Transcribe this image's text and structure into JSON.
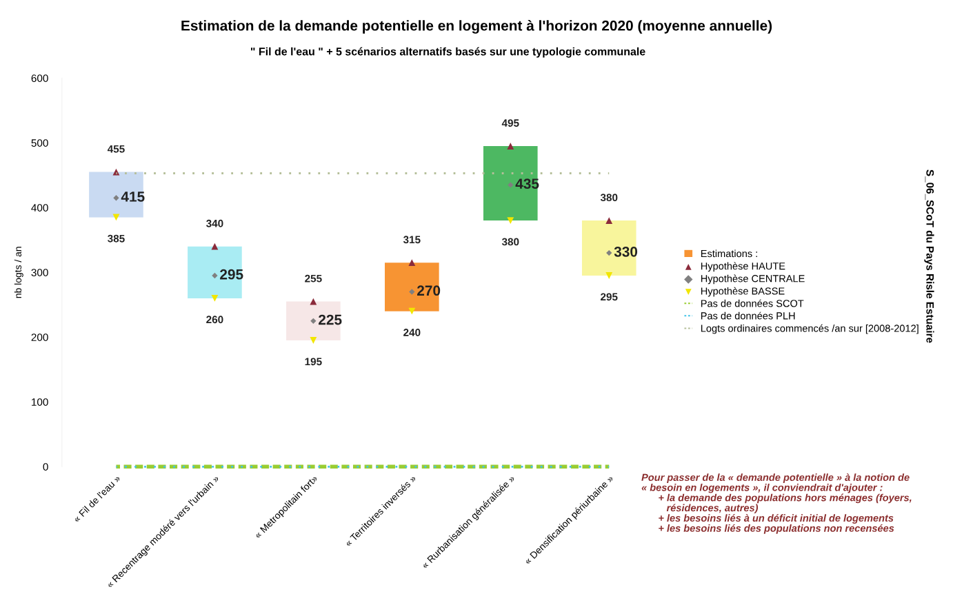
{
  "chart_data": {
    "type": "bar",
    "title": "Estimation de la demande potentielle en logement à l'horizon 2020 (moyenne annuelle)",
    "subtitle": "\" Fil de l'eau \" + 5 scénarios alternatifs basés sur une typologie communale",
    "ylabel": "nb logts / an",
    "categories": [
      "« Fil de l'eau »",
      "« Recentrage modéré vers l'urbain »",
      "« Metropolitain fort»",
      "« Territoires inversés »",
      "« Rurbanisation généralisée »",
      "« Densification périurbaine »"
    ],
    "ylim": [
      0,
      600
    ],
    "yticks": [
      0,
      100,
      200,
      300,
      400,
      500,
      600
    ],
    "grid": false,
    "legend": "right",
    "series": [
      {
        "name": "Estimations :",
        "color": "#f79433",
        "colors": [
          "#c9daf2",
          "#a9ecf3",
          "#f6e7e7",
          "#f79433",
          "#4db862",
          "#f8f59c"
        ],
        "base": [
          385,
          260,
          195,
          240,
          380,
          295
        ],
        "values": [
          70,
          80,
          60,
          75,
          115,
          85
        ]
      },
      {
        "name": "Hypothèse HAUTE",
        "type": "scatter",
        "marker": "triangle",
        "color": "#8b2b3b",
        "values": [
          455,
          340,
          255,
          315,
          495,
          380
        ],
        "value_labels": [
          "455",
          "340",
          "255",
          "315",
          "495",
          "380"
        ]
      },
      {
        "name": "Hypothèse CENTRALE",
        "type": "scatter",
        "marker": "diamond",
        "color": "#808080",
        "values": [
          415,
          295,
          225,
          270,
          435,
          330
        ],
        "value_labels": [
          "415",
          "295",
          "225",
          "270",
          "435",
          "330"
        ]
      },
      {
        "name": "Hypothèse BASSE",
        "type": "scatter",
        "marker": "triangle_down",
        "color": "#f2e600",
        "values": [
          385,
          260,
          195,
          240,
          380,
          295
        ],
        "value_labels": [
          "385",
          "260",
          "195",
          "240",
          "380",
          "295"
        ]
      },
      {
        "name": "Pas de données SCOT",
        "type": "line",
        "line_style": "dashed",
        "color": "#9acd32",
        "values": [
          0,
          0,
          0,
          0,
          0,
          0
        ]
      },
      {
        "name": "Pas de données PLH",
        "type": "line",
        "line_style": "dotted",
        "color": "#40c4e8",
        "values": [
          0,
          0,
          0,
          0,
          0,
          0
        ]
      },
      {
        "name": "Logts ordinaires commencés /an sur [2008-2012]",
        "type": "line",
        "line_style": "dotted",
        "color": "#b5bf9a",
        "values": [
          453,
          453,
          453,
          453,
          453,
          453
        ]
      }
    ],
    "annotations": [
      "S_06_SCoT du Pays Risle Estuaire",
      "Pour passer de la « demande potentielle » à la notion de\n« besoin en logements », il conviendrait d'ajouter :\n      + la demande des populations hors ménages (foyers,\n         résidences, autres)\n      + les besoins liés à un déficit initial de logements\n      + les besoins liés des populations non recensées"
    ]
  }
}
